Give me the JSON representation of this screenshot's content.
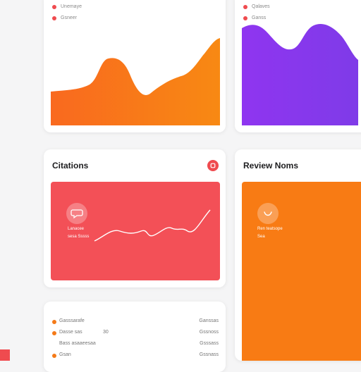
{
  "cards": {
    "top_left": {
      "legend": [
        {
          "label": "Unemaye",
          "color": "#ef4b4f"
        },
        {
          "label": "Gsneer",
          "color": "#ef4b4f"
        }
      ],
      "color": "#f77718"
    },
    "top_right": {
      "legend": [
        {
          "label": "Qalaves",
          "color": "#ef4b4f"
        },
        {
          "label": "Ganss",
          "color": "#ef4b4f"
        }
      ],
      "color": "#8a33ee"
    },
    "citations": {
      "title": "Citations",
      "panel_color": "#f35057",
      "panel_text": [
        "Lanacee",
        "sesa Sssss"
      ]
    },
    "review": {
      "title": "Review Noms",
      "panel_color": "#f87b14",
      "panel_text": [
        "Ren teatsope",
        "Sea"
      ]
    },
    "list": {
      "rows": [
        {
          "label": "Gasssarafe",
          "mid": "",
          "value": "Ganssas"
        },
        {
          "label": "Dasse sas",
          "mid": "30",
          "value": "Gssnoss"
        },
        {
          "label": "Bass asaaeesaa",
          "mid": "",
          "value": "Gsssass"
        },
        {
          "label": "Gsan",
          "mid": "",
          "value": "Gssnass"
        }
      ]
    }
  }
}
